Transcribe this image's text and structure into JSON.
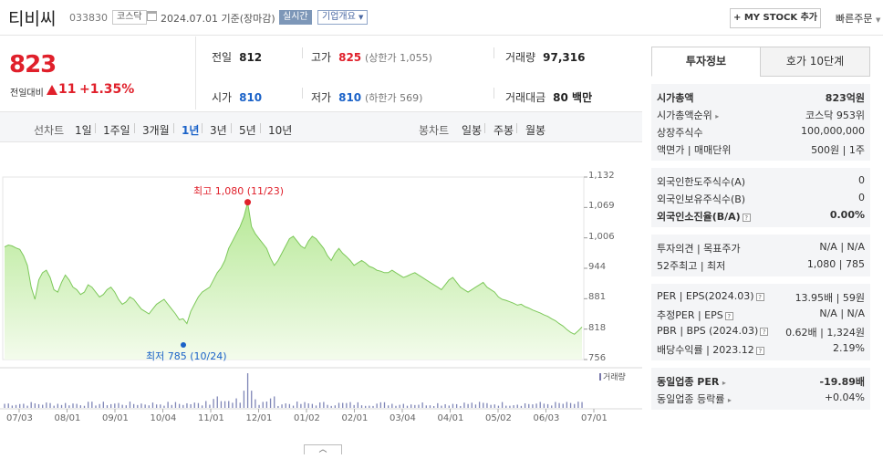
{
  "header": {
    "company_name": "티비씨",
    "stock_code": "033830",
    "market": "코스닥",
    "date": "2024.07.01  기준(장마감)",
    "realtime": "실시간",
    "corp_overview": "기업개요",
    "mystock_label": "+ MY STOCK 추가",
    "quick_order": "빠른주문"
  },
  "price": {
    "current": "823",
    "change_label": "전일대비",
    "change": "11",
    "change_pct": "+1.35%",
    "color_up": "#e0202b"
  },
  "stats": {
    "prev_label": "전일",
    "prev": "812",
    "high_label": "고가",
    "high": "825",
    "upper_limit": "(상한가 1,055)",
    "volume_label": "거래량",
    "volume": "97,316",
    "open_label": "시가",
    "open": "810",
    "low_label": "저가",
    "low": "810",
    "lower_limit": "(하한가 569)",
    "amount_label": "거래대금",
    "amount": "80 백만"
  },
  "period_bar": {
    "line_chart": "선차트",
    "periods": [
      "1일",
      "1주일",
      "3개월",
      "1년",
      "3년",
      "5년",
      "10년"
    ],
    "active_period": "1년",
    "candle_chart": "봉차트",
    "candles": [
      "일봉",
      "주봉",
      "월봉"
    ]
  },
  "chart_data": {
    "type": "area",
    "y_ticks": [
      "1,132",
      "1,069",
      "1,006",
      "944",
      "881",
      "818",
      "756"
    ],
    "x_ticks": [
      "07/03",
      "08/01",
      "09/01",
      "10/04",
      "11/01",
      "12/01",
      "01/02",
      "02/01",
      "03/04",
      "04/01",
      "05/02",
      "06/03",
      "07/01"
    ],
    "ylim": [
      756,
      1132
    ],
    "high_label": "최고 1,080 (11/23)",
    "low_label": "최저 785 (10/24)",
    "volume_label": "거래량",
    "line_color": "#7dc85a",
    "fill_color": "#c9f0b0",
    "prices": [
      988,
      992,
      990,
      986,
      983,
      970,
      950,
      905,
      880,
      920,
      935,
      940,
      925,
      900,
      895,
      915,
      930,
      920,
      905,
      900,
      890,
      895,
      910,
      905,
      895,
      885,
      890,
      900,
      905,
      895,
      880,
      870,
      875,
      885,
      880,
      870,
      860,
      855,
      850,
      860,
      870,
      875,
      880,
      870,
      860,
      850,
      838,
      840,
      830,
      855,
      870,
      885,
      895,
      900,
      905,
      920,
      935,
      945,
      960,
      985,
      1000,
      1015,
      1030,
      1050,
      1080,
      1030,
      1015,
      1005,
      995,
      985,
      965,
      950,
      960,
      975,
      990,
      1005,
      1010,
      1000,
      990,
      985,
      1000,
      1010,
      1005,
      995,
      985,
      970,
      960,
      975,
      985,
      975,
      968,
      960,
      950,
      955,
      960,
      955,
      948,
      945,
      940,
      938,
      935,
      935,
      940,
      935,
      930,
      925,
      928,
      932,
      935,
      930,
      925,
      920,
      915,
      910,
      905,
      900,
      910,
      920,
      925,
      915,
      905,
      900,
      895,
      900,
      905,
      910,
      915,
      905,
      900,
      895,
      885,
      880,
      878,
      875,
      872,
      868,
      870,
      865,
      862,
      858,
      855,
      852,
      848,
      845,
      840,
      836,
      830,
      825,
      818,
      812,
      808,
      815,
      823
    ]
  },
  "invest_info": {
    "tab_info": "투자정보",
    "tab_quote": "호가 10단계",
    "market_cap_label": "시가총액",
    "market_cap": "823억원",
    "market_cap_rank_label": "시가총액순위",
    "market_cap_rank": "코스닥 953위",
    "shares_label": "상장주식수",
    "shares": "100,000,000",
    "face_label": "액면가 | 매매단위",
    "face": "500원 | 1주",
    "foreign_limit_label": "외국인한도주식수(A)",
    "foreign_limit": "0",
    "foreign_hold_label": "외국인보유주식수(B)",
    "foreign_hold": "0",
    "foreign_rate_label": "외국인소진율(B/A)",
    "foreign_rate": "0.00%",
    "opinion_label": "투자의견 | 목표주가",
    "opinion": "N/A | N/A",
    "w52_label": "52주최고 | 최저",
    "w52": "1,080 | 785",
    "per_label": "PER | EPS(2024.03)",
    "per": "13.95배 | 59원",
    "est_per_label": "추정PER | EPS",
    "est_per": "N/A | N/A",
    "pbr_label": "PBR | BPS (2024.03)",
    "pbr": "0.62배 | 1,324원",
    "div_label": "배당수익률 | 2023.12",
    "div": "2.19%",
    "industry_per_label": "동일업종 PER",
    "industry_per": "-19.89배",
    "industry_rate_label": "동일업종 등락률",
    "industry_rate": "+0.04%"
  }
}
